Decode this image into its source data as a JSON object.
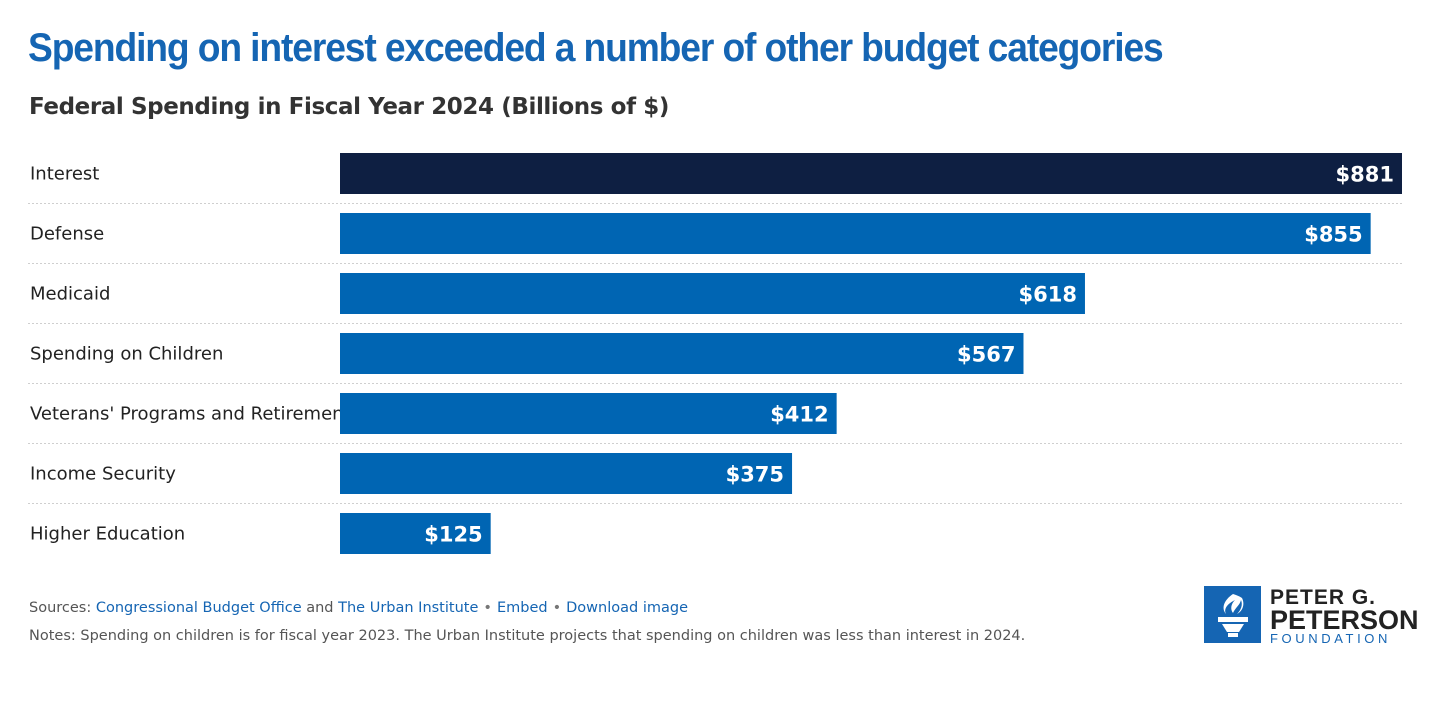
{
  "header": {
    "title": "Spending on interest exceeded a number of other budget categories",
    "subtitle": "Federal Spending in Fiscal Year 2024 (Billions of $)"
  },
  "chart_data": {
    "type": "bar",
    "orientation": "horizontal",
    "title": "Spending on interest exceeded a number of other budget categories",
    "subtitle": "Federal Spending in Fiscal Year 2024 (Billions of $)",
    "categories": [
      "Interest",
      "Defense",
      "Medicaid",
      "Spending on Children",
      "Veterans' Programs and Retirement",
      "Income Security",
      "Higher Education"
    ],
    "values": [
      881,
      855,
      618,
      567,
      412,
      375,
      125
    ],
    "value_labels": [
      "$881",
      "$855",
      "$618",
      "$567",
      "$412",
      "$375",
      "$125"
    ],
    "xlim": [
      0,
      881
    ],
    "grid": false,
    "legend": "none",
    "colors": {
      "highlight": "#0e1f42",
      "default": "#0065b3",
      "separator": "#cfcfcf"
    },
    "highlight_index": 0
  },
  "footer": {
    "sources_prefix": "Sources: ",
    "source1": "Congressional Budget Office",
    "and_text": " and ",
    "source2": "The Urban Institute",
    "dot": "•",
    "embed": "Embed",
    "download": "Download image",
    "notes": "Notes: Spending on children is for fiscal year 2023. The Urban Institute projects that spending on children was less than interest in 2024."
  },
  "logo": {
    "line1": "PETER G.",
    "line2": "PETERSON",
    "line3": "FOUNDATION",
    "icon": "torch-icon"
  },
  "colors": {
    "title": "#1565b3",
    "link": "#1565b3",
    "text": "#222222"
  }
}
